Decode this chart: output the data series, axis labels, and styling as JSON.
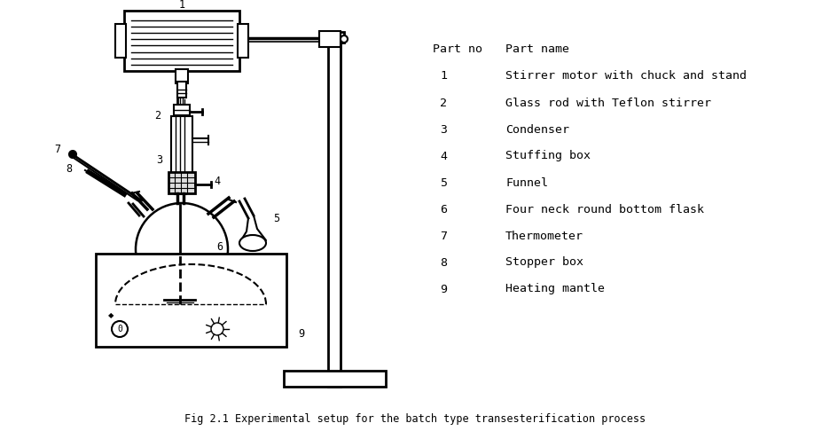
{
  "title": "Fig 2.1 Experimental setup for the batch type transesterification process",
  "bg_color": "#ffffff",
  "text_color": "#000000",
  "part_no_header": "Part no",
  "part_name_header": "Part name",
  "parts": [
    {
      "no": "1",
      "name": "Stirrer motor with chuck and stand"
    },
    {
      "no": "2",
      "name": "Glass rod with Teflon stirrer"
    },
    {
      "no": "3",
      "name": "Condenser"
    },
    {
      "no": "4",
      "name": "Stuffing box"
    },
    {
      "no": "5",
      "name": "Funnel"
    },
    {
      "no": "6",
      "name": "Four neck round bottom flask"
    },
    {
      "no": "7",
      "name": "Thermometer"
    },
    {
      "no": "8",
      "name": "Stopper box"
    },
    {
      "no": "9",
      "name": "Heating mantle"
    }
  ],
  "font_size_title": 8.5,
  "font_size_table": 9.5,
  "font_size_labels": 8.5
}
